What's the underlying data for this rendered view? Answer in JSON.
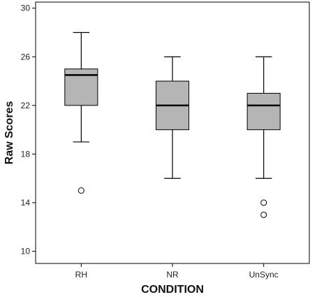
{
  "chart_data": {
    "type": "boxplot",
    "title": "",
    "xlabel": "CONDITION",
    "ylabel": "Raw Scores",
    "ylim": [
      9,
      30.5
    ],
    "y_ticks": [
      10,
      14,
      18,
      22,
      26,
      30
    ],
    "grid": false,
    "legend": "none",
    "box_color": "#b5b5b5",
    "categories": [
      "RH",
      "NR",
      "UnSync"
    ],
    "boxes": [
      {
        "category": "RH",
        "whisker_low": 19,
        "q1": 22,
        "median": 24.5,
        "q3": 25,
        "whisker_high": 28,
        "outliers": [
          15
        ]
      },
      {
        "category": "NR",
        "whisker_low": 16,
        "q1": 20,
        "median": 22,
        "q3": 24,
        "whisker_high": 26,
        "outliers": []
      },
      {
        "category": "UnSync",
        "whisker_low": 16,
        "q1": 20,
        "median": 22,
        "q3": 23,
        "whisker_high": 26,
        "outliers": [
          14,
          13
        ]
      }
    ]
  }
}
